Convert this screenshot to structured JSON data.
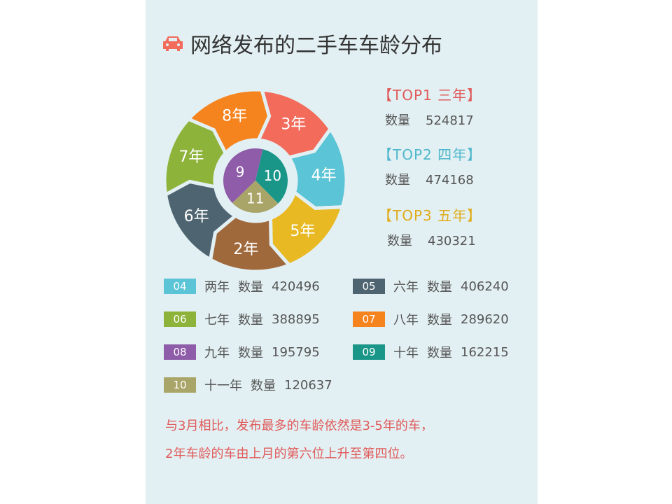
{
  "title": "网络发布的二手车车龄分布",
  "title_icon": "car-icon",
  "chart_data": {
    "type": "pie",
    "title": "网络发布的二手车车龄分布",
    "outer_ring": [
      {
        "label": "3年",
        "value": 524817,
        "color": "#f26b5b"
      },
      {
        "label": "4年",
        "value": 474168,
        "color": "#5bc4d6"
      },
      {
        "label": "5年",
        "value": 430321,
        "color": "#e8b923"
      },
      {
        "label": "2年",
        "value": 420496,
        "color": "#a0693c"
      },
      {
        "label": "6年",
        "value": 406240,
        "color": "#4e6470"
      },
      {
        "label": "7年",
        "value": 388895,
        "color": "#8db33a"
      },
      {
        "label": "8年",
        "value": 289620,
        "color": "#f5841f"
      }
    ],
    "inner_pie": [
      {
        "label": "9",
        "value": 195795,
        "color": "#8e5ca8"
      },
      {
        "label": "10",
        "value": 162215,
        "color": "#1a9688"
      },
      {
        "label": "11",
        "value": 120637,
        "color": "#a9a467"
      }
    ]
  },
  "top": [
    {
      "label": "【TOP1 三年】",
      "qty_label": "数量",
      "qty": "524817",
      "color": "#e05a5a"
    },
    {
      "label": "【TOP2 四年】",
      "qty_label": "数量",
      "qty": "474168",
      "color": "#4fb8cc"
    },
    {
      "label": "【TOP3 五年】",
      "qty_label": "数量",
      "qty": "430321",
      "color": "#e0ac1c"
    }
  ],
  "legend": [
    {
      "num": "04",
      "name": "两年",
      "qty_label": "数量",
      "qty": "420496",
      "color": "#5bc4d6"
    },
    {
      "num": "05",
      "name": "六年",
      "qty_label": "数量",
      "qty": "406240",
      "color": "#4e6470"
    },
    {
      "num": "06",
      "name": "七年",
      "qty_label": "数量",
      "qty": "388895",
      "color": "#8db33a"
    },
    {
      "num": "07",
      "name": "八年",
      "qty_label": "数量",
      "qty": "289620",
      "color": "#f5841f"
    },
    {
      "num": "08",
      "name": "九年",
      "qty_label": "数量",
      "qty": "195795",
      "color": "#8e5ca8"
    },
    {
      "num": "09",
      "name": "十年",
      "qty_label": "数量",
      "qty": "162215",
      "color": "#1a9688"
    },
    {
      "num": "10",
      "name": "十一年",
      "qty_label": "数量",
      "qty": "120637",
      "color": "#a9a467"
    }
  ],
  "notes": [
    "与3月相比，发布最多的车龄依然是3-5年的车，",
    "2年车龄的车由上月的第六位上升至第四位。"
  ]
}
